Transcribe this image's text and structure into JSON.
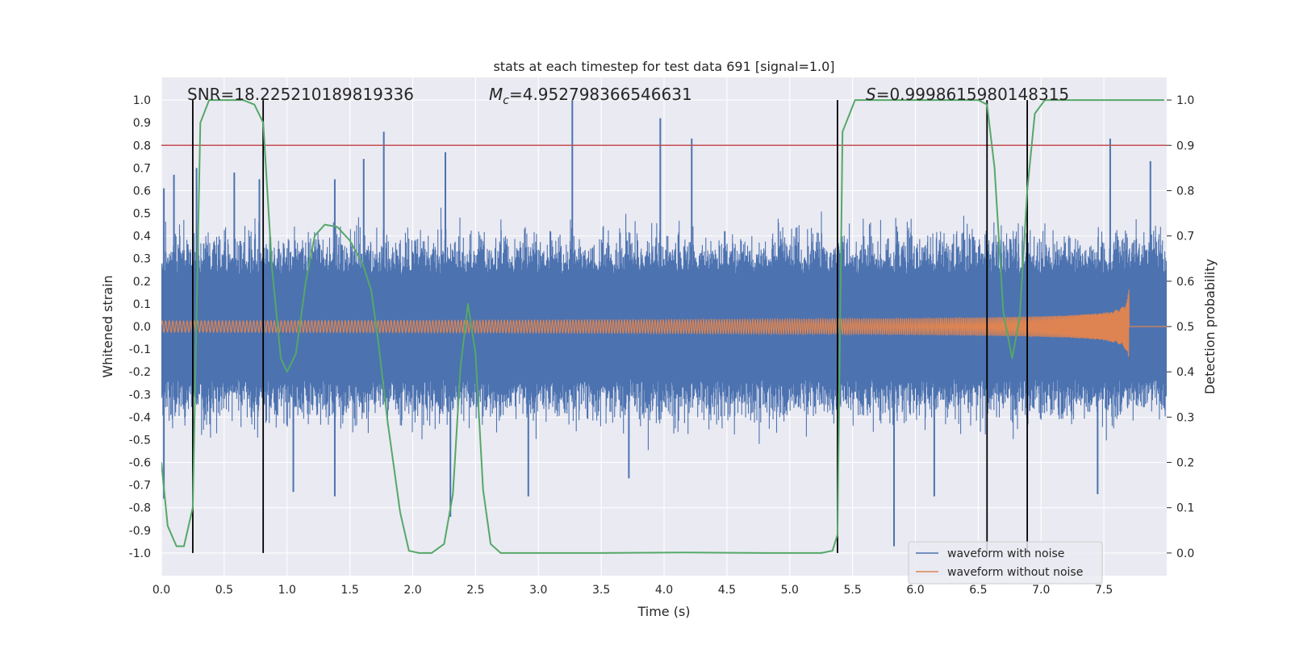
{
  "chart_data": {
    "type": "line",
    "title": "stats at each timestep for test data 691 [signal=1.0]",
    "xlabel": "Time (s)",
    "ylabel": "Whitened strain",
    "y2label": "Detection probability",
    "xlim": [
      0.0,
      8.0
    ],
    "ylim": [
      -1.1,
      1.1
    ],
    "y2lim": [
      -0.05,
      1.05
    ],
    "xticks": [
      0.0,
      0.5,
      1.0,
      1.5,
      2.0,
      2.5,
      3.0,
      3.5,
      4.0,
      4.5,
      5.0,
      5.5,
      6.0,
      6.5,
      7.0,
      7.5
    ],
    "xtick_labels": [
      "0.0",
      "0.5",
      "1.0",
      "1.5",
      "2.0",
      "2.5",
      "3.0",
      "3.5",
      "4.0",
      "4.5",
      "5.0",
      "5.5",
      "6.0",
      "6.5",
      "7.0",
      "7.5"
    ],
    "yticks": [
      1.0,
      0.9,
      0.8,
      0.7,
      0.6,
      0.5,
      0.4,
      0.3,
      0.2,
      0.1,
      0.0,
      -0.1,
      -0.2,
      -0.3,
      -0.4,
      -0.5,
      -0.6,
      -0.7,
      -0.8,
      -0.9,
      -1.0
    ],
    "ytick_labels": [
      "1.0",
      "0.9",
      "0.8",
      "0.7",
      "0.6",
      "0.5",
      "0.4",
      "0.3",
      "0.2",
      "0.1",
      "0.0",
      "-0.1",
      "-0.2",
      "-0.3",
      "-0.4",
      "-0.5",
      "-0.6",
      "-0.7",
      "-0.8",
      "-0.9",
      "-1.0"
    ],
    "y2ticks": [
      1.0,
      0.9,
      0.8,
      0.7,
      0.6,
      0.5,
      0.4,
      0.3,
      0.2,
      0.1,
      0.0
    ],
    "y2tick_labels": [
      "1.0",
      "0.9",
      "0.8",
      "0.7",
      "0.6",
      "0.5",
      "0.4",
      "0.3",
      "0.2",
      "0.1",
      "0.0"
    ],
    "grid": true,
    "legend_position": "bottom-right",
    "legend": [
      "waveform with noise",
      "waveform without noise"
    ],
    "annotations": {
      "snr": "SNR=18.225210189819336",
      "mc_symbol": "M",
      "mc_sub": "c",
      "mc_value": "=4.952798366546631",
      "s_symbol": "S",
      "s_value": "=0.9998615980148315"
    },
    "threshold": {
      "axis": "y2",
      "value": 0.9,
      "color": "#c44e52"
    },
    "vertical_lines": [
      0.25,
      0.81,
      5.38,
      6.57,
      6.89
    ],
    "series": [
      {
        "name": "waveform with noise",
        "axis": "y",
        "color": "#4c72b0",
        "envelope_typical": 0.42,
        "peak_spikes": [
          {
            "x": 0.02,
            "y": 0.61
          },
          {
            "x": 0.1,
            "y": 0.67
          },
          {
            "x": 0.28,
            "y": 0.7
          },
          {
            "x": 0.58,
            "y": 0.68
          },
          {
            "x": 0.78,
            "y": 0.65
          },
          {
            "x": 1.38,
            "y": 0.65
          },
          {
            "x": 1.61,
            "y": 0.74
          },
          {
            "x": 1.77,
            "y": 0.86
          },
          {
            "x": 2.26,
            "y": 0.77
          },
          {
            "x": 3.27,
            "y": 1.0
          },
          {
            "x": 3.97,
            "y": 0.92
          },
          {
            "x": 4.22,
            "y": 0.83
          },
          {
            "x": 7.55,
            "y": 0.83
          },
          {
            "x": 7.87,
            "y": 0.73
          },
          {
            "x": 0.02,
            "y": -0.76
          },
          {
            "x": 1.05,
            "y": -0.73
          },
          {
            "x": 1.38,
            "y": -0.75
          },
          {
            "x": 2.3,
            "y": -0.84
          },
          {
            "x": 2.92,
            "y": -0.75
          },
          {
            "x": 3.72,
            "y": -0.67
          },
          {
            "x": 5.83,
            "y": -0.97
          },
          {
            "x": 6.15,
            "y": -0.75
          },
          {
            "x": 7.45,
            "y": -0.74
          }
        ]
      },
      {
        "name": "waveform without noise",
        "axis": "y",
        "color": "#dd8452",
        "chirp": {
          "t_merge": 7.7,
          "amp_start": 0.025,
          "amp_peak": 0.35,
          "f_start": 35,
          "f_end": 160
        }
      },
      {
        "name": "detection probability",
        "axis": "y2",
        "color": "#55a868",
        "x": [
          0.0,
          0.05,
          0.12,
          0.18,
          0.25,
          0.31,
          0.38,
          0.5,
          0.65,
          0.74,
          0.81,
          0.88,
          0.95,
          1.0,
          1.07,
          1.15,
          1.22,
          1.3,
          1.4,
          1.5,
          1.6,
          1.67,
          1.72,
          1.8,
          1.9,
          1.97,
          2.05,
          2.15,
          2.25,
          2.32,
          2.38,
          2.44,
          2.5,
          2.56,
          2.62,
          2.7,
          2.8,
          3.5,
          4.15,
          4.8,
          5.25,
          5.34,
          5.38,
          5.42,
          5.52,
          5.8,
          6.2,
          6.5,
          6.57,
          6.63,
          6.7,
          6.77,
          6.83,
          6.89,
          6.95,
          7.03,
          7.2,
          7.5,
          7.98
        ],
        "y": [
          0.2,
          0.06,
          0.015,
          0.015,
          0.1,
          0.95,
          1.0,
          1.0,
          1.0,
          0.99,
          0.95,
          0.63,
          0.43,
          0.4,
          0.44,
          0.6,
          0.7,
          0.725,
          0.72,
          0.69,
          0.64,
          0.58,
          0.48,
          0.29,
          0.09,
          0.005,
          0.0,
          0.0,
          0.02,
          0.13,
          0.41,
          0.55,
          0.44,
          0.14,
          0.02,
          0.0,
          0.0,
          0.0,
          0.001,
          0.0,
          0.0,
          0.005,
          0.04,
          0.93,
          1.0,
          1.0,
          1.0,
          1.0,
          0.99,
          0.85,
          0.53,
          0.43,
          0.52,
          0.8,
          0.97,
          1.0,
          1.0,
          1.0,
          1.0
        ]
      }
    ]
  }
}
